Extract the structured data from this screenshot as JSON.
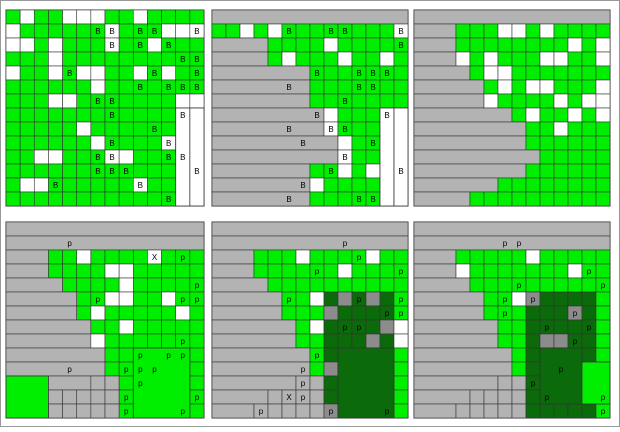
{
  "colors": {
    "green": "#00ee00",
    "dark_green": "#0b6b0b",
    "gray": "#b3b3b3",
    "mid_gray": "#8c8c8c",
    "white": "#ffffff",
    "line": "#333333"
  },
  "panels": [
    {
      "id": "panel-1",
      "labels": [
        "B",
        "B",
        "B",
        "B",
        "B",
        "B",
        "B",
        "B",
        "B",
        "B",
        "B",
        "B",
        "B",
        "B",
        "B",
        "B",
        "B",
        "B",
        "B",
        "B",
        "B",
        "B",
        "B",
        "B",
        "B",
        "B",
        "B",
        "B",
        "B",
        "B",
        "B",
        "B",
        "B",
        "B",
        "B"
      ]
    },
    {
      "id": "panel-2",
      "labels": [
        "B",
        "B",
        "B",
        "B",
        "B",
        "B",
        "B",
        "B",
        "B",
        "B",
        "B",
        "B",
        "B",
        "B",
        "B",
        "B",
        "B",
        "B",
        "B",
        "B",
        "B",
        "B",
        "B",
        "B",
        "B",
        "B",
        "B"
      ]
    },
    {
      "id": "panel-3",
      "labels": []
    },
    {
      "id": "panel-4",
      "labels": [
        "p",
        "p",
        "p",
        "p",
        "p",
        "p",
        "p",
        "p",
        "p",
        "p",
        "p",
        "p",
        "p",
        "p",
        "p",
        "p",
        "p",
        "X",
        "p",
        "p"
      ]
    },
    {
      "id": "panel-5",
      "labels": [
        "p",
        "p",
        "p",
        "p",
        "p",
        "p",
        "p",
        "p",
        "p",
        "p",
        "p",
        "p",
        "p",
        "p",
        "p",
        "X",
        "p",
        "p",
        "p"
      ]
    },
    {
      "id": "panel-6",
      "labels": [
        "p",
        "p",
        "p",
        "p",
        "p",
        "p",
        "p",
        "p",
        "p",
        "p",
        "p",
        "p",
        "p",
        "p",
        "p",
        "p",
        "p"
      ]
    }
  ]
}
